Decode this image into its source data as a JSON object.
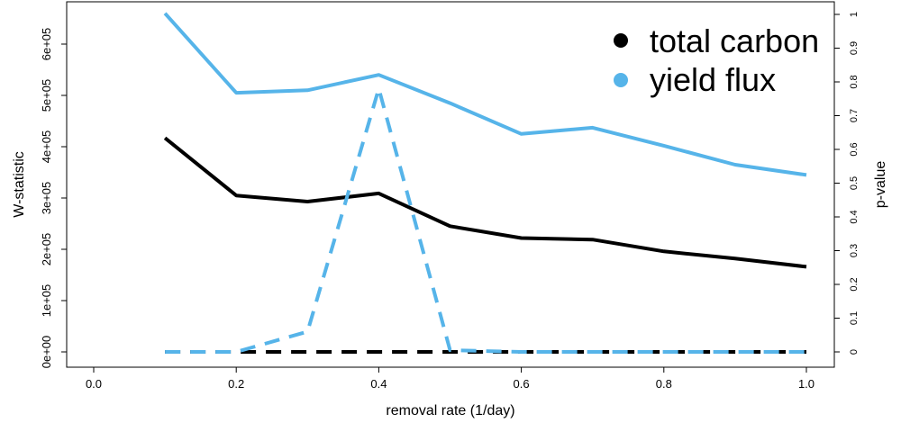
{
  "chart_data": {
    "type": "line",
    "xlabel": "removal rate (1/day)",
    "ylabel_left": "W-statistic",
    "ylabel_right": "p-value",
    "xlim": [
      0.0,
      1.0
    ],
    "ylim_left": [
      0,
      600000
    ],
    "ylim_right": [
      0,
      1
    ],
    "x_ticks": [
      0.0,
      0.2,
      0.4,
      0.6,
      0.8,
      1.0
    ],
    "x_tick_labels": [
      "0.0",
      "0.2",
      "0.4",
      "0.6",
      "0.8",
      "1.0"
    ],
    "left_ticks": [
      0,
      100000,
      200000,
      300000,
      400000,
      500000,
      600000
    ],
    "left_tick_labels": [
      "0e+00",
      "1e+05",
      "2e+05",
      "3e+05",
      "4e+05",
      "5e+05",
      "6e+05"
    ],
    "right_ticks": [
      0,
      0.1,
      0.2,
      0.3,
      0.4,
      0.5,
      0.6,
      0.7,
      0.8,
      0.9,
      1
    ],
    "right_tick_labels": [
      "0",
      "0.1",
      "0.2",
      "0.3",
      "0.4",
      "0.5",
      "0.6",
      "0.7",
      "0.8",
      "0.9",
      "1"
    ],
    "grid": false,
    "legend_position": "top-right",
    "x": [
      0.1,
      0.2,
      0.3,
      0.4,
      0.5,
      0.6,
      0.7,
      0.8,
      0.9,
      1.0
    ],
    "series": [
      {
        "name": "total carbon",
        "color": "#000000",
        "axis": "left",
        "style": "solid",
        "values": [
          417000,
          305000,
          293000,
          309000,
          245000,
          222000,
          219000,
          196000,
          182000,
          166000
        ]
      },
      {
        "name": "yield flux",
        "color": "#56b4e9",
        "axis": "left",
        "style": "solid",
        "values": [
          660000,
          505000,
          510000,
          540000,
          485000,
          425000,
          437000,
          402000,
          365000,
          345000
        ]
      },
      {
        "name": "total carbon",
        "color": "#000000",
        "axis": "right",
        "style": "dashed",
        "values": [
          0,
          0,
          0,
          0,
          0,
          0,
          0,
          0,
          0,
          0
        ]
      },
      {
        "name": "yield flux",
        "color": "#56b4e9",
        "axis": "right",
        "style": "dashed",
        "values": [
          0,
          0,
          0.06,
          0.78,
          0.005,
          0,
          0,
          0,
          0,
          0
        ]
      }
    ],
    "legend": [
      {
        "label": "total carbon",
        "color": "#000000"
      },
      {
        "label": "yield flux",
        "color": "#56b4e9"
      }
    ]
  }
}
